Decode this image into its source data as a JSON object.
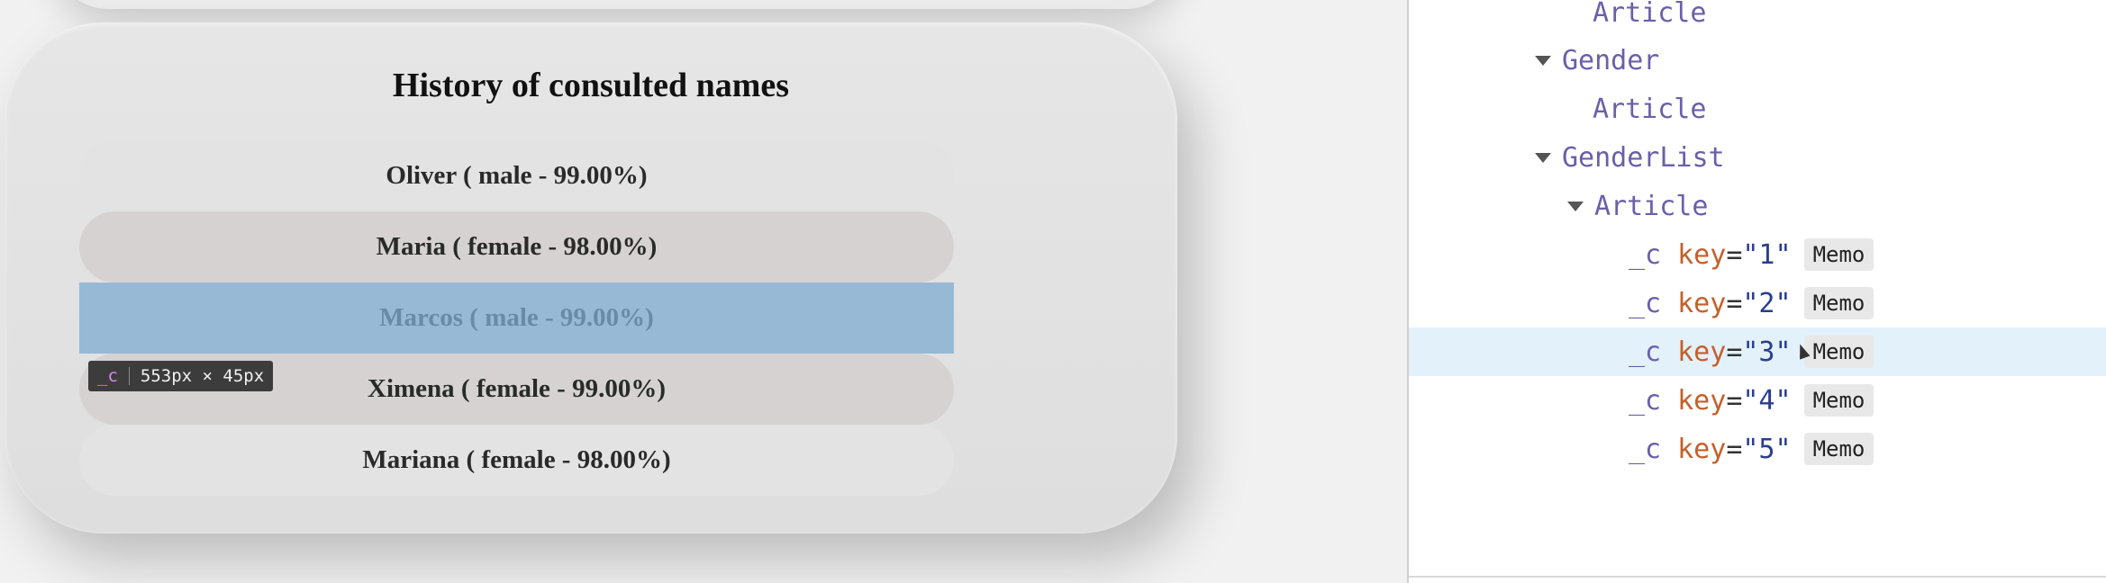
{
  "app": {
    "title": "History of consulted names",
    "names": [
      {
        "label": "Oliver ( male - 99.00%)"
      },
      {
        "label": "Maria ( female - 98.00%)"
      },
      {
        "label": "Marcos ( male - 99.00%)"
      },
      {
        "label": "Ximena ( female - 99.00%)"
      },
      {
        "label": "Mariana ( female - 98.00%)"
      }
    ],
    "tooltip": {
      "component": "_c",
      "size": "553px × 45px"
    }
  },
  "devtools": {
    "tree": [
      {
        "name": "Article"
      },
      {
        "name": "Gender"
      },
      {
        "name": "Article"
      },
      {
        "name": "GenderList"
      },
      {
        "name": "Article"
      },
      {
        "name": "_c",
        "key_attr": "key",
        "key_value": "\"1\"",
        "badge": "Memo"
      },
      {
        "name": "_c",
        "key_attr": "key",
        "key_value": "\"2\"",
        "badge": "Memo"
      },
      {
        "name": "_c",
        "key_attr": "key",
        "key_value": "\"3\"",
        "badge": "Memo"
      },
      {
        "name": "_c",
        "key_attr": "key",
        "key_value": "\"4\"",
        "badge": "Memo"
      },
      {
        "name": "_c",
        "key_attr": "key",
        "key_value": "\"5\"",
        "badge": "Memo"
      }
    ],
    "eq": "="
  }
}
